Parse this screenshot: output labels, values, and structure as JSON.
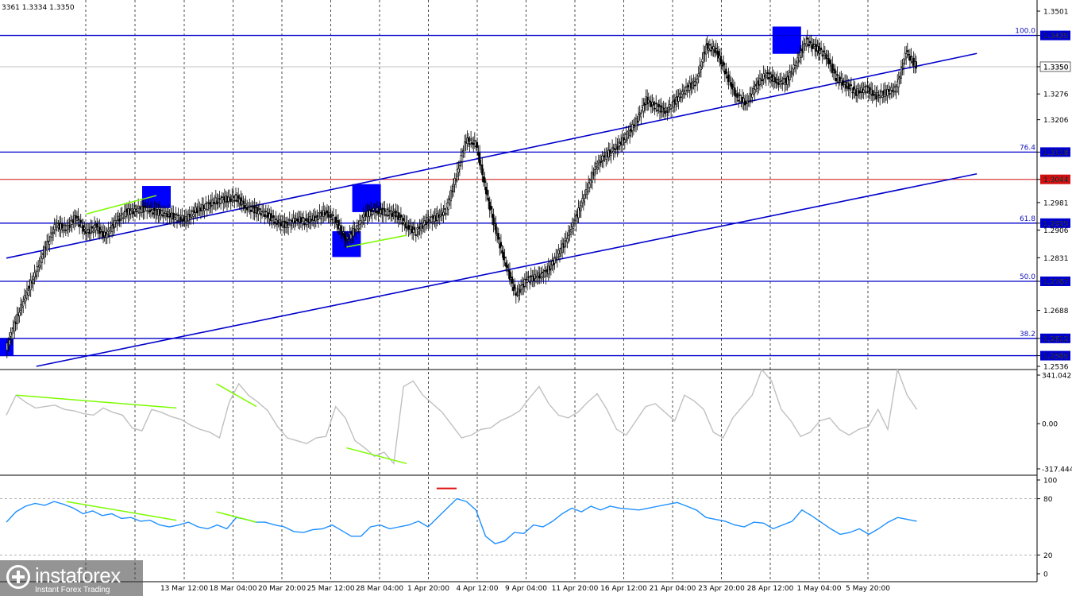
{
  "header": {
    "ohlc_text": "3361 1.3334 1.3350"
  },
  "brand": {
    "name": "instaforex",
    "tagline": "Instant Forex Trading",
    "icon": "instaforex-logo-icon"
  },
  "colors": {
    "up_candle": "#000000",
    "level_line": "#0000cc",
    "current_line": "#d01010",
    "divergence": "#7cfc00",
    "cci_line": "#c0c0c0",
    "stoch_line": "#1e90ff",
    "highlight_box": "#0000ff",
    "overbought_mark": "#e01010"
  },
  "chart_data": [
    {
      "type": "candlestick",
      "panel": "price",
      "ylim": [
        1.2536,
        1.3501
      ],
      "y_ticks": [
        "1.3501",
        "1.3435",
        "1.3350",
        "1.3276",
        "1.3206",
        "1.3118",
        "1.3044",
        "1.2981",
        "1.2925",
        "1.2906",
        "1.2831",
        "1.2767",
        "1.2688",
        "1.2612",
        "1.2565",
        "1.2536"
      ],
      "x_tick_labels": [
        "13 Mar 12:00",
        "18 Mar 04:00",
        "20 Mar 20:00",
        "25 Mar 12:00",
        "28 Mar 04:00",
        "1 Apr 20:00",
        "4 Apr 12:00",
        "9 Apr 04:00",
        "11 Apr 20:00",
        "16 Apr 12:00",
        "21 Apr 04:00",
        "23 Apr 20:00",
        "28 Apr 12:00",
        "1 May 04:00",
        "5 May 20:00"
      ],
      "fib_levels": [
        {
          "label": "100.0",
          "price": 1.3435,
          "price_label": "1.3435"
        },
        {
          "label": "76.4",
          "price": 1.3118,
          "price_label": "1.3118"
        },
        {
          "label": "61.8",
          "price": 1.2925,
          "price_label": "1.2925"
        },
        {
          "label": "50.0",
          "price": 1.2767,
          "price_label": "1.2767"
        },
        {
          "label": "38.2",
          "price": 1.2612,
          "price_label": "1.2612"
        }
      ],
      "extra_levels": [
        {
          "price": 1.2565,
          "price_label": "1.2565"
        }
      ],
      "current_level": {
        "price": 1.3044,
        "price_label": "1.3044"
      },
      "last_price": {
        "price": 1.335,
        "price_label": "1.3350"
      },
      "trend_channel": [
        {
          "from": [
            0,
            1.283
          ],
          "to": [
            97,
            1.3386
          ]
        },
        {
          "from": [
            3,
            1.2536
          ],
          "to": [
            97,
            1.3059
          ]
        }
      ],
      "close_path": [
        [
          0,
          1.258
        ],
        [
          1,
          1.266
        ],
        [
          2,
          1.273
        ],
        [
          3,
          1.279
        ],
        [
          4,
          1.286
        ],
        [
          5,
          1.292
        ],
        [
          6,
          1.291
        ],
        [
          7,
          1.294
        ],
        [
          8,
          1.29
        ],
        [
          9,
          1.2915
        ],
        [
          10,
          1.289
        ],
        [
          11,
          1.293
        ],
        [
          12,
          1.2955
        ],
        [
          13,
          1.296
        ],
        [
          14,
          1.2965
        ],
        [
          15,
          1.2955
        ],
        [
          16,
          1.295
        ],
        [
          17,
          1.294
        ],
        [
          18,
          1.2935
        ],
        [
          19,
          1.296
        ],
        [
          20,
          1.297
        ],
        [
          21,
          1.2985
        ],
        [
          22,
          1.299
        ],
        [
          23,
          1.2995
        ],
        [
          24,
          1.297
        ],
        [
          25,
          1.296
        ],
        [
          26,
          1.295
        ],
        [
          27,
          1.293
        ],
        [
          28,
          1.292
        ],
        [
          29,
          1.2935
        ],
        [
          30,
          1.293
        ],
        [
          31,
          1.294
        ],
        [
          32,
          1.2955
        ],
        [
          33,
          1.293
        ],
        [
          34,
          1.288
        ],
        [
          35,
          1.291
        ],
        [
          36,
          1.295
        ],
        [
          37,
          1.296
        ],
        [
          38,
          1.2955
        ],
        [
          39,
          1.295
        ],
        [
          40,
          1.292
        ],
        [
          41,
          1.29
        ],
        [
          42,
          1.293
        ],
        [
          43,
          1.294
        ],
        [
          44,
          1.296
        ],
        [
          45,
          1.305
        ],
        [
          46,
          1.315
        ],
        [
          47,
          1.314
        ],
        [
          48,
          1.301
        ],
        [
          49,
          1.29
        ],
        [
          50,
          1.281
        ],
        [
          51,
          1.273
        ],
        [
          52,
          1.277
        ],
        [
          53,
          1.278
        ],
        [
          54,
          1.279
        ],
        [
          55,
          1.283
        ],
        [
          56,
          1.288
        ],
        [
          57,
          1.294
        ],
        [
          58,
          1.301
        ],
        [
          59,
          1.308
        ],
        [
          60,
          1.311
        ],
        [
          61,
          1.313
        ],
        [
          62,
          1.316
        ],
        [
          63,
          1.32
        ],
        [
          64,
          1.326
        ],
        [
          65,
          1.324
        ],
        [
          66,
          1.323
        ],
        [
          67,
          1.326
        ],
        [
          68,
          1.329
        ],
        [
          69,
          1.331
        ],
        [
          70,
          1.3405
        ],
        [
          71,
          1.3395
        ],
        [
          72,
          1.333
        ],
        [
          73,
          1.327
        ],
        [
          74,
          1.325
        ],
        [
          75,
          1.33
        ],
        [
          76,
          1.333
        ],
        [
          77,
          1.331
        ],
        [
          78,
          1.331
        ],
        [
          79,
          1.336
        ],
        [
          80,
          1.342
        ],
        [
          81,
          1.34
        ],
        [
          82,
          1.338
        ],
        [
          83,
          1.332
        ],
        [
          84,
          1.33
        ],
        [
          85,
          1.328
        ],
        [
          86,
          1.329
        ],
        [
          87,
          1.327
        ],
        [
          88,
          1.328
        ],
        [
          89,
          1.329
        ],
        [
          90,
          1.339
        ],
        [
          91,
          1.335
        ]
      ],
      "highlight_boxes": [
        {
          "x": 0,
          "y0": 1.2565,
          "y1": 1.2612
        },
        {
          "x": 15,
          "y0": 1.2966,
          "y1": 1.3026
        },
        {
          "x": 34,
          "y0": 1.2833,
          "y1": 1.2903
        },
        {
          "x": 36,
          "y0": 1.2955,
          "y1": 1.3031
        },
        {
          "x": 78,
          "y0": 1.3385,
          "y1": 1.3459
        }
      ],
      "divergence_lines": [
        {
          "from": [
            8,
            1.295
          ],
          "to": [
            15,
            1.3
          ]
        },
        {
          "from": [
            34,
            1.286
          ],
          "to": [
            40,
            1.2892
          ]
        }
      ]
    },
    {
      "type": "line",
      "panel": "cci",
      "ylim": [
        -317.444,
        341.0423
      ],
      "y_ticks": [
        "341.0423",
        "0.00",
        "-317.444"
      ],
      "series": [
        {
          "values": [
            60,
            200,
            150,
            110,
            120,
            130,
            100,
            90,
            70,
            60,
            110,
            80,
            60,
            -30,
            -50,
            100,
            80,
            50,
            30,
            -10,
            -40,
            -60,
            -100,
            150,
            280,
            200,
            150,
            90,
            -20,
            -100,
            -120,
            -140,
            -100,
            -90,
            120,
            40,
            -120,
            -170,
            -230,
            -200,
            -280,
            260,
            300,
            200,
            140,
            80,
            -10,
            -100,
            -80,
            -40,
            -30,
            20,
            50,
            90,
            180,
            260,
            140,
            60,
            40,
            80,
            150,
            210,
            100,
            -40,
            -80,
            20,
            120,
            140,
            80,
            20,
            200,
            160,
            100,
            -60,
            -100,
            40,
            120,
            200,
            380,
            300,
            100,
            20,
            -90,
            -60,
            20,
            40,
            -40,
            -80,
            -40,
            -20,
            100,
            -40,
            380,
            200,
            100
          ]
        }
      ],
      "divergence_lines": [
        {
          "from": [
            1,
            200
          ],
          "to": [
            17,
            110
          ]
        },
        {
          "from": [
            21,
            280
          ],
          "to": [
            25,
            120
          ]
        },
        {
          "from": [
            34,
            -170
          ],
          "to": [
            40,
            -280
          ]
        }
      ]
    },
    {
      "type": "line",
      "panel": "stochastic",
      "ylim": [
        0,
        100
      ],
      "y_ticks": [
        "100",
        "80",
        "20",
        "0"
      ],
      "guide_levels": [
        80,
        20
      ],
      "series": [
        {
          "values": [
            55,
            66,
            72,
            75,
            73,
            77,
            74,
            70,
            64,
            67,
            62,
            64,
            59,
            60,
            56,
            57,
            52,
            50,
            52,
            55,
            50,
            48,
            52,
            48,
            60,
            58,
            55,
            55,
            52,
            50,
            45,
            44,
            47,
            48,
            52,
            46,
            40,
            40,
            50,
            52,
            48,
            50,
            52,
            56,
            50,
            60,
            70,
            80,
            77,
            68,
            40,
            32,
            35,
            44,
            43,
            52,
            50,
            56,
            64,
            70,
            66,
            72,
            68,
            72,
            70,
            69,
            68,
            70,
            72,
            74,
            76,
            72,
            68,
            60,
            58,
            56,
            52,
            50,
            55,
            54,
            48,
            52,
            56,
            68,
            62,
            55,
            48,
            42,
            44,
            48,
            42,
            48,
            55,
            60,
            58,
            56
          ]
        }
      ],
      "overbought_mark": {
        "from": 43,
        "to": 45,
        "value": 91
      },
      "divergence_lines": [
        {
          "from": [
            6,
            77
          ],
          "to": [
            17,
            57
          ]
        },
        {
          "from": [
            21,
            66
          ],
          "to": [
            25,
            55
          ]
        }
      ]
    }
  ]
}
